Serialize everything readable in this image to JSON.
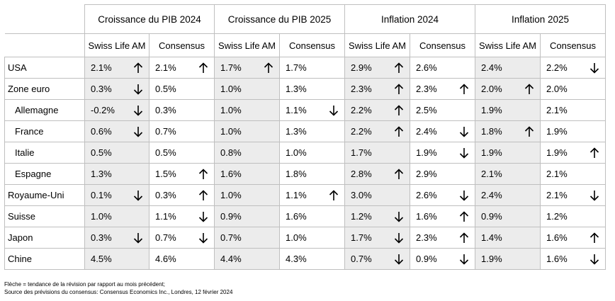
{
  "groups": [
    "Croissance du PIB 2024",
    "Croissance du PIB 2025",
    "Inflation 2024",
    "Inflation 2025"
  ],
  "subheaders": [
    "Swiss Life AM",
    "Consensus"
  ],
  "rows": [
    {
      "country": "USA",
      "indent": false,
      "cells": [
        {
          "v": "2.1%",
          "a": "up"
        },
        {
          "v": "2.1%",
          "a": "up"
        },
        {
          "v": "1.7%",
          "a": "up"
        },
        {
          "v": "1.7%",
          "a": ""
        },
        {
          "v": "2.9%",
          "a": "up"
        },
        {
          "v": "2.6%",
          "a": ""
        },
        {
          "v": "2.4%",
          "a": ""
        },
        {
          "v": "2.2%",
          "a": "down"
        }
      ]
    },
    {
      "country": "Zone euro",
      "indent": false,
      "cells": [
        {
          "v": "0.3%",
          "a": "down"
        },
        {
          "v": "0.5%",
          "a": ""
        },
        {
          "v": "1.0%",
          "a": ""
        },
        {
          "v": "1.3%",
          "a": ""
        },
        {
          "v": "2.3%",
          "a": "up"
        },
        {
          "v": "2.3%",
          "a": "up"
        },
        {
          "v": "2.0%",
          "a": "up"
        },
        {
          "v": "2.0%",
          "a": ""
        }
      ]
    },
    {
      "country": "Allemagne",
      "indent": true,
      "cells": [
        {
          "v": "-0.2%",
          "a": "down"
        },
        {
          "v": "0.3%",
          "a": ""
        },
        {
          "v": "1.0%",
          "a": ""
        },
        {
          "v": "1.1%",
          "a": "down"
        },
        {
          "v": "2.2%",
          "a": "up"
        },
        {
          "v": "2.5%",
          "a": ""
        },
        {
          "v": "1.9%",
          "a": ""
        },
        {
          "v": "2.1%",
          "a": ""
        }
      ]
    },
    {
      "country": "France",
      "indent": true,
      "cells": [
        {
          "v": "0.6%",
          "a": "down"
        },
        {
          "v": "0.7%",
          "a": ""
        },
        {
          "v": "1.0%",
          "a": ""
        },
        {
          "v": "1.3%",
          "a": ""
        },
        {
          "v": "2.2%",
          "a": "up"
        },
        {
          "v": "2.4%",
          "a": "down"
        },
        {
          "v": "1.8%",
          "a": "up"
        },
        {
          "v": "1.9%",
          "a": ""
        }
      ]
    },
    {
      "country": "Italie",
      "indent": true,
      "cells": [
        {
          "v": "0.5%",
          "a": ""
        },
        {
          "v": "0.5%",
          "a": ""
        },
        {
          "v": "0.8%",
          "a": ""
        },
        {
          "v": "1.0%",
          "a": ""
        },
        {
          "v": "1.7%",
          "a": ""
        },
        {
          "v": "1.9%",
          "a": "down"
        },
        {
          "v": "1.9%",
          "a": ""
        },
        {
          "v": "1.9%",
          "a": "up"
        }
      ]
    },
    {
      "country": "Espagne",
      "indent": true,
      "cells": [
        {
          "v": "1.3%",
          "a": ""
        },
        {
          "v": "1.5%",
          "a": "up"
        },
        {
          "v": "1.6%",
          "a": ""
        },
        {
          "v": "1.8%",
          "a": ""
        },
        {
          "v": "2.8%",
          "a": "up"
        },
        {
          "v": "2.9%",
          "a": ""
        },
        {
          "v": "2.1%",
          "a": ""
        },
        {
          "v": "2.1%",
          "a": ""
        }
      ]
    },
    {
      "country": "Royaume-Uni",
      "indent": false,
      "cells": [
        {
          "v": "0.1%",
          "a": "down"
        },
        {
          "v": "0.3%",
          "a": "up"
        },
        {
          "v": "1.0%",
          "a": ""
        },
        {
          "v": "1.1%",
          "a": "up"
        },
        {
          "v": "3.0%",
          "a": ""
        },
        {
          "v": "2.6%",
          "a": "down"
        },
        {
          "v": "2.4%",
          "a": ""
        },
        {
          "v": "2.1%",
          "a": "down"
        }
      ]
    },
    {
      "country": "Suisse",
      "indent": false,
      "cells": [
        {
          "v": "1.0%",
          "a": ""
        },
        {
          "v": "1.1%",
          "a": "down"
        },
        {
          "v": "0.9%",
          "a": ""
        },
        {
          "v": "1.6%",
          "a": ""
        },
        {
          "v": "1.2%",
          "a": "down"
        },
        {
          "v": "1.6%",
          "a": "up"
        },
        {
          "v": "0.9%",
          "a": ""
        },
        {
          "v": "1.2%",
          "a": ""
        }
      ]
    },
    {
      "country": "Japon",
      "indent": false,
      "cells": [
        {
          "v": "0.3%",
          "a": "down"
        },
        {
          "v": "0.7%",
          "a": "down"
        },
        {
          "v": "0.7%",
          "a": ""
        },
        {
          "v": "1.0%",
          "a": ""
        },
        {
          "v": "1.7%",
          "a": "down"
        },
        {
          "v": "2.3%",
          "a": "up"
        },
        {
          "v": "1.4%",
          "a": ""
        },
        {
          "v": "1.6%",
          "a": "up"
        }
      ]
    },
    {
      "country": "Chine",
      "indent": false,
      "cells": [
        {
          "v": "4.5%",
          "a": ""
        },
        {
          "v": "4.6%",
          "a": ""
        },
        {
          "v": "4.4%",
          "a": ""
        },
        {
          "v": "4.3%",
          "a": ""
        },
        {
          "v": "0.7%",
          "a": "down"
        },
        {
          "v": "0.9%",
          "a": "down"
        },
        {
          "v": "1.9%",
          "a": ""
        },
        {
          "v": "1.6%",
          "a": "down"
        }
      ]
    }
  ],
  "notes": [
    "Flèche = tendance de la révision par rapport au mois précédent;",
    "Source des prévisions du consensus: Consensus Economics Inc., Londres, 12 février  2024"
  ],
  "colors": {
    "swisslife_cell_bg": "#ececec",
    "grid": "#bfbfbf"
  },
  "icons": {
    "up": "arrow-up-icon",
    "down": "arrow-down-icon"
  }
}
